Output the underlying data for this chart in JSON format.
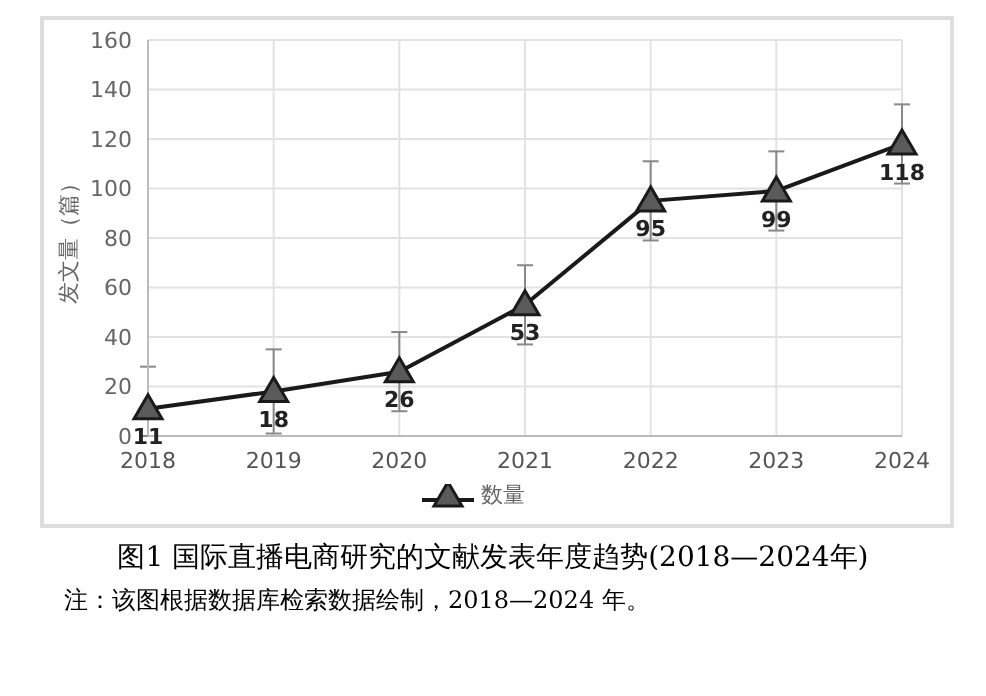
{
  "chart_data": {
    "type": "line",
    "title": "图1 国际直播电商研究的文献发表年度趋势(2018—2024年)",
    "ylabel": "发文量（篇）",
    "annotations": [
      "注：该图根据数据库检索数据绘制，2018—2024 年。"
    ],
    "categories": [
      "2018",
      "2019",
      "2020",
      "2021",
      "2022",
      "2023",
      "2024"
    ],
    "series": [
      {
        "name": "数量",
        "color": "#1a1a1a",
        "values": [
          11,
          18,
          26,
          53,
          95,
          99,
          118
        ],
        "errors": [
          [
            0,
            28
          ],
          [
            1,
            35
          ],
          [
            10,
            42
          ],
          [
            37,
            69
          ],
          [
            79,
            111
          ],
          [
            83,
            115
          ],
          [
            102,
            134
          ]
        ]
      }
    ],
    "ylim": [
      0,
      160
    ],
    "yticks": [
      0,
      20,
      40,
      60,
      80,
      100,
      120,
      140,
      160
    ],
    "grid": true,
    "legend": "bottom",
    "marker": "triangle",
    "line_style": "solid",
    "data_labels": true
  }
}
